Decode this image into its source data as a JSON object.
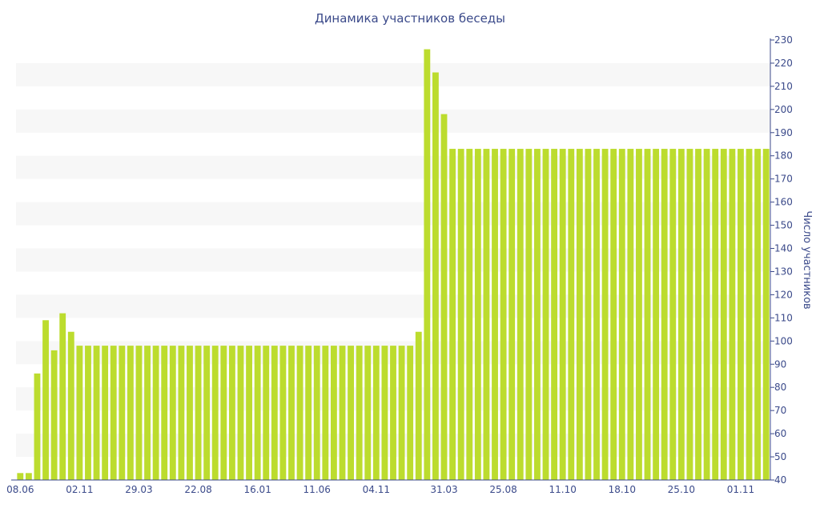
{
  "chart_data": {
    "type": "bar",
    "title": "Динамика участников беседы",
    "xlabel": "",
    "ylabel": "Число участников",
    "ylim": [
      40,
      230
    ],
    "y_axis_position": "right",
    "y_ticks": [
      40,
      50,
      60,
      70,
      80,
      90,
      100,
      110,
      120,
      130,
      140,
      150,
      160,
      170,
      180,
      190,
      200,
      210,
      220,
      230
    ],
    "x_tick_labels": [
      {
        "index": 0,
        "label": "08.06"
      },
      {
        "index": 7,
        "label": "02.11"
      },
      {
        "index": 14,
        "label": "29.03"
      },
      {
        "index": 21,
        "label": "22.08"
      },
      {
        "index": 28,
        "label": "16.01"
      },
      {
        "index": 35,
        "label": "11.06"
      },
      {
        "index": 42,
        "label": "04.11"
      },
      {
        "index": 50,
        "label": "31.03"
      },
      {
        "index": 57,
        "label": "25.08"
      },
      {
        "index": 64,
        "label": "11.10"
      },
      {
        "index": 71,
        "label": "18.10"
      },
      {
        "index": 78,
        "label": "25.10"
      },
      {
        "index": 85,
        "label": "01.11"
      }
    ],
    "grid": "horizontal bands",
    "bar_color": "#bcdc2e",
    "band_color": "#f7f7f7",
    "text_color": "#3b4a8a",
    "values": [
      43,
      43,
      86,
      109,
      96,
      112,
      104,
      98,
      98,
      98,
      98,
      98,
      98,
      98,
      98,
      98,
      98,
      98,
      98,
      98,
      98,
      98,
      98,
      98,
      98,
      98,
      98,
      98,
      98,
      98,
      98,
      98,
      98,
      98,
      98,
      98,
      98,
      98,
      98,
      98,
      98,
      98,
      98,
      98,
      98,
      98,
      98,
      104,
      226,
      216,
      198,
      183,
      183,
      183,
      183,
      183,
      183,
      183,
      183,
      183,
      183,
      183,
      183,
      183,
      183,
      183,
      183,
      183,
      183,
      183,
      183,
      183,
      183,
      183,
      183,
      183,
      183,
      183,
      183,
      183,
      183,
      183,
      183,
      183,
      183,
      183,
      183,
      183,
      183
    ]
  }
}
